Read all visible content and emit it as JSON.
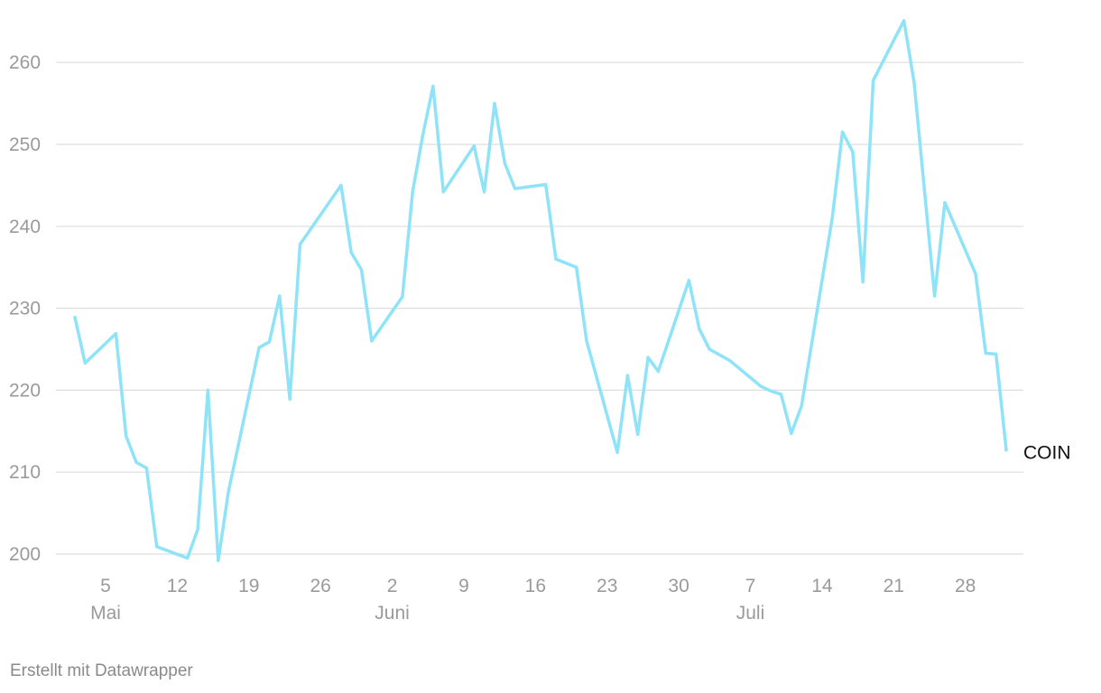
{
  "chart_data": {
    "type": "line",
    "title": "",
    "xlabel": "",
    "ylabel": "",
    "ylim": [
      200,
      265
    ],
    "y_ticks": [
      200,
      210,
      220,
      230,
      240,
      250,
      260
    ],
    "x_range": [
      "2024-05-02",
      "2024-08-01"
    ],
    "x_ticks": [
      {
        "date": "2024-05-05",
        "day": "5",
        "month": "Mai"
      },
      {
        "date": "2024-05-12",
        "day": "12",
        "month": ""
      },
      {
        "date": "2024-05-19",
        "day": "19",
        "month": ""
      },
      {
        "date": "2024-05-26",
        "day": "26",
        "month": ""
      },
      {
        "date": "2024-06-02",
        "day": "2",
        "month": "Juni"
      },
      {
        "date": "2024-06-09",
        "day": "9",
        "month": ""
      },
      {
        "date": "2024-06-16",
        "day": "16",
        "month": ""
      },
      {
        "date": "2024-06-23",
        "day": "23",
        "month": ""
      },
      {
        "date": "2024-06-30",
        "day": "30",
        "month": ""
      },
      {
        "date": "2024-07-07",
        "day": "7",
        "month": "Juli"
      },
      {
        "date": "2024-07-14",
        "day": "14",
        "month": ""
      },
      {
        "date": "2024-07-21",
        "day": "21",
        "month": ""
      },
      {
        "date": "2024-07-28",
        "day": "28",
        "month": ""
      }
    ],
    "grid": true,
    "series": [
      {
        "name": "COIN",
        "color": "#8ee3f8",
        "points": [
          [
            "2024-05-02",
            228.9
          ],
          [
            "2024-05-03",
            223.3
          ],
          [
            "2024-05-06",
            226.9
          ],
          [
            "2024-05-07",
            214.4
          ],
          [
            "2024-05-08",
            211.2
          ],
          [
            "2024-05-09",
            210.5
          ],
          [
            "2024-05-10",
            200.9
          ],
          [
            "2024-05-13",
            199.5
          ],
          [
            "2024-05-14",
            203.0
          ],
          [
            "2024-05-15",
            220.0
          ],
          [
            "2024-05-16",
            199.2
          ],
          [
            "2024-05-17",
            207.6
          ],
          [
            "2024-05-20",
            225.2
          ],
          [
            "2024-05-21",
            225.9
          ],
          [
            "2024-05-22",
            231.5
          ],
          [
            "2024-05-23",
            218.9
          ],
          [
            "2024-05-24",
            237.8
          ],
          [
            "2024-05-28",
            245.0
          ],
          [
            "2024-05-29",
            236.8
          ],
          [
            "2024-05-30",
            234.7
          ],
          [
            "2024-05-31",
            226.0
          ],
          [
            "2024-06-03",
            231.4
          ],
          [
            "2024-06-04",
            244.2
          ],
          [
            "2024-06-05",
            251.2
          ],
          [
            "2024-06-06",
            257.1
          ],
          [
            "2024-06-07",
            244.2
          ],
          [
            "2024-06-10",
            249.8
          ],
          [
            "2024-06-11",
            244.2
          ],
          [
            "2024-06-12",
            255.0
          ],
          [
            "2024-06-13",
            247.7
          ],
          [
            "2024-06-14",
            244.6
          ],
          [
            "2024-06-17",
            245.1
          ],
          [
            "2024-06-18",
            236.0
          ],
          [
            "2024-06-20",
            235.0
          ],
          [
            "2024-06-21",
            226.0
          ],
          [
            "2024-06-24",
            212.4
          ],
          [
            "2024-06-25",
            221.8
          ],
          [
            "2024-06-26",
            214.6
          ],
          [
            "2024-06-27",
            224.0
          ],
          [
            "2024-06-28",
            222.3
          ],
          [
            "2024-07-01",
            233.4
          ],
          [
            "2024-07-02",
            227.5
          ],
          [
            "2024-07-03",
            225.0
          ],
          [
            "2024-07-05",
            223.6
          ],
          [
            "2024-07-08",
            220.5
          ],
          [
            "2024-07-09",
            219.9
          ],
          [
            "2024-07-10",
            219.5
          ],
          [
            "2024-07-11",
            214.7
          ],
          [
            "2024-07-12",
            218.1
          ],
          [
            "2024-07-15",
            241.0
          ],
          [
            "2024-07-16",
            251.5
          ],
          [
            "2024-07-17",
            249.1
          ],
          [
            "2024-07-18",
            233.2
          ],
          [
            "2024-07-19",
            257.8
          ],
          [
            "2024-07-22",
            265.1
          ],
          [
            "2024-07-23",
            257.6
          ],
          [
            "2024-07-25",
            231.5
          ],
          [
            "2024-07-26",
            242.9
          ],
          [
            "2024-07-29",
            234.2
          ],
          [
            "2024-07-30",
            224.5
          ],
          [
            "2024-07-31",
            224.4
          ],
          [
            "2024-08-01",
            212.7
          ]
        ]
      }
    ]
  },
  "footer": {
    "credit": "Erstellt mit Datawrapper"
  }
}
